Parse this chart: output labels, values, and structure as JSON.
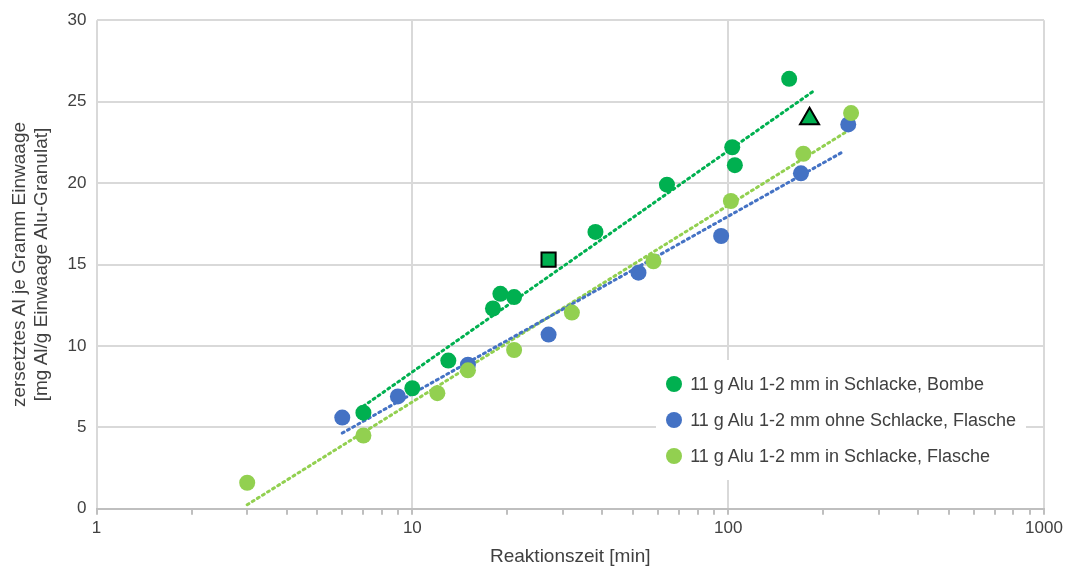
{
  "chart_data": {
    "type": "scatter",
    "xlabel": "Reaktionszeit [min]",
    "ylabel": "zersetztes Al je Gramm Einwaage\n[mg Al/g Einwaage Alu-Granulat]",
    "log": "x",
    "grid": true,
    "legend": "bottom right",
    "marker": "circle",
    "xlim": [
      1,
      1000
    ],
    "xticks": [
      1,
      {
        "value": 2,
        "label": null
      },
      {
        "value": 3,
        "label": null
      },
      {
        "value": 4,
        "label": null
      },
      {
        "value": 5,
        "label": null
      },
      {
        "value": 6,
        "label": null
      },
      {
        "value": 7,
        "label": null
      },
      {
        "value": 8,
        "label": null
      },
      {
        "value": 9,
        "label": null
      },
      10,
      {
        "value": 20,
        "label": null
      },
      {
        "value": 30,
        "label": null
      },
      {
        "value": 40,
        "label": null
      },
      {
        "value": 50,
        "label": null
      },
      {
        "value": 60,
        "label": null
      },
      {
        "value": 70,
        "label": null
      },
      {
        "value": 80,
        "label": null
      },
      {
        "value": 90,
        "label": null
      },
      100,
      {
        "value": 200,
        "label": null
      },
      {
        "value": 300,
        "label": null
      },
      {
        "value": 400,
        "label": null
      },
      {
        "value": 500,
        "label": null
      },
      {
        "value": 600,
        "label": null
      },
      {
        "value": 700,
        "label": null
      },
      {
        "value": 800,
        "label": null
      },
      {
        "value": 900,
        "label": null
      },
      1000
    ],
    "ylim": [
      0,
      30
    ],
    "yticks": [
      0,
      5,
      10,
      15,
      20,
      25,
      30
    ],
    "series": [
      {
        "name": "11 g Alu 1-2 mm in Schlacke, Bombe",
        "color": "#00b050",
        "x": [
          7,
          10,
          13,
          18,
          19,
          21,
          38,
          64,
          103,
          105,
          156
        ],
        "values": [
          5.9,
          7.4,
          9.1,
          12.3,
          13.2,
          13.0,
          17.0,
          19.9,
          22.2,
          21.1,
          26.4
        ]
      },
      {
        "name": "11 g Alu 1-2 mm ohne Schlacke, Flasche",
        "color": "#4472c4",
        "x": [
          6,
          9,
          15,
          27,
          52,
          95,
          170,
          240
        ],
        "values": [
          5.6,
          6.9,
          8.85,
          10.7,
          14.5,
          16.75,
          20.6,
          23.6
        ]
      },
      {
        "name": "11 g Alu 1-2 mm in Schlacke, Flasche",
        "color": "#92d050",
        "x": [
          3,
          7,
          12,
          15,
          21,
          32,
          58,
          102,
          173,
          245
        ],
        "values": [
          1.6,
          4.5,
          7.1,
          8.5,
          9.75,
          12.05,
          15.2,
          18.9,
          21.8,
          24.3
        ]
      },
      {
        "color": "#00b050",
        "marker": "square",
        "x": [
          27
        ],
        "values": [
          15.3
        ]
      },
      {
        "color": "#00b050",
        "marker": "triangle",
        "x": [
          181
        ],
        "values": [
          23.95
        ]
      },
      {
        "type": "line",
        "line_style": "dotted",
        "marker": "none",
        "color": "#00b050",
        "x": [
          7,
          188
        ],
        "values": [
          6.3,
          25.7
        ]
      },
      {
        "type": "line",
        "line_style": "dotted",
        "marker": "none",
        "color": "#4472c4",
        "x": [
          6,
          230
        ],
        "values": [
          4.65,
          21.9
        ]
      },
      {
        "type": "line",
        "line_style": "dotted",
        "marker": "none",
        "color": "#92d050",
        "x": [
          3,
          239
        ],
        "values": [
          0.25,
          23.2
        ]
      }
    ]
  }
}
